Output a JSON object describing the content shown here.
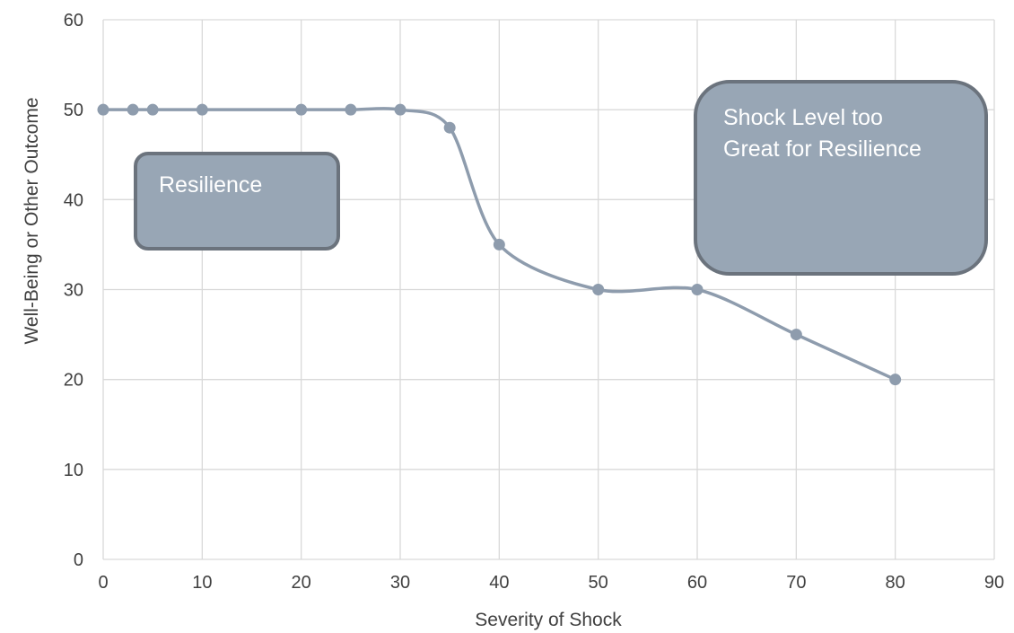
{
  "chart_data": {
    "type": "scatter",
    "title": "",
    "xlabel": "Severity of Shock",
    "ylabel": "Well-Being or Other Outcome",
    "xlim": [
      0,
      90
    ],
    "ylim": [
      0,
      60
    ],
    "xticks": [
      0,
      10,
      20,
      30,
      40,
      50,
      60,
      70,
      80,
      90
    ],
    "yticks": [
      0,
      10,
      20,
      30,
      40,
      50,
      60
    ],
    "grid": true,
    "legend": "none",
    "series": [
      {
        "color": "#8E9CAD",
        "line": "smooth",
        "x": [
          0,
          3,
          5,
          10,
          20,
          25,
          30,
          35,
          40,
          50,
          60,
          70,
          80
        ],
        "y": [
          50,
          50,
          50,
          50,
          50,
          50,
          50,
          48,
          35,
          30,
          30,
          25,
          20
        ]
      }
    ],
    "annotations": [
      {
        "lines": [
          "Resilience"
        ]
      },
      {
        "lines": [
          "Shock Level too",
          "Great for Resilience"
        ]
      }
    ]
  },
  "colors": {
    "series": "#8E9CAD",
    "callout_fill": "#98A6B5",
    "callout_border": "#6B737D",
    "grid": "#D9D9D9",
    "text": "#404040"
  }
}
